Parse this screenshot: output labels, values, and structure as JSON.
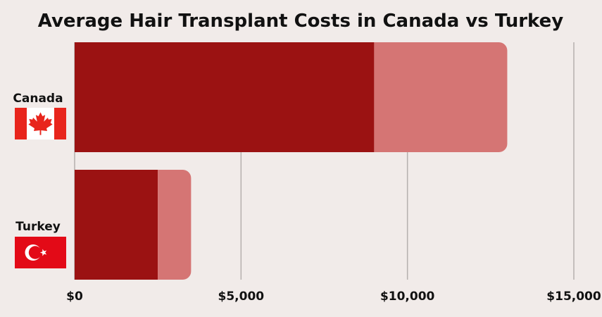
{
  "chart_data": {
    "type": "bar",
    "orientation": "horizontal",
    "stacked": true,
    "title": "Average Hair Transplant Costs in Canada vs Turkey",
    "xlabel": "",
    "ylabel": "",
    "categories": [
      "Canada",
      "Turkey"
    ],
    "category_flags": [
      "canada-flag-icon",
      "turkey-flag-icon"
    ],
    "series": [
      {
        "values": [
          9000,
          2500
        ],
        "color": "#9b1212"
      },
      {
        "values": [
          4000,
          1000
        ],
        "color": "#d57574"
      }
    ],
    "xlim": [
      0,
      15000
    ],
    "ticks": [
      0,
      5000,
      10000,
      15000
    ],
    "tick_labels": [
      "$0",
      "$5,000",
      "$10,000",
      "$15,000"
    ],
    "grid": true,
    "legend": "none"
  },
  "colors": {
    "background": "#f1ebe9",
    "gridline": "#b5b0ae",
    "text": "#111111",
    "canada_red": "#e8251c",
    "turkey_red": "#e30a17"
  }
}
